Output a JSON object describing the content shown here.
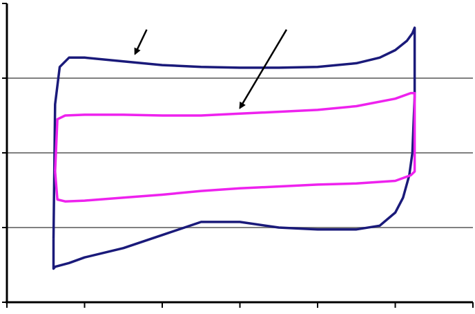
{
  "chart_data": {
    "type": "line",
    "title": "",
    "xlabel": "",
    "ylabel": "",
    "xlim": [
      0,
      6
    ],
    "ylim": [
      -4,
      4
    ],
    "grid": {
      "horizontal": true,
      "vertical": false
    },
    "x_ticks": [
      0,
      1,
      2,
      3,
      4,
      5,
      6
    ],
    "y_gridlines": [
      -2,
      0,
      2
    ],
    "colors": {
      "outer": "#1a1a7a",
      "inner": "#ee22ee",
      "grid": "#808080",
      "axis": "#000000"
    },
    "series": [
      {
        "color": "#1a1a7a",
        "x": [
          0.6,
          0.62,
          0.68,
          0.8,
          1.0,
          1.5,
          2.0,
          2.5,
          3.0,
          3.5,
          4.0,
          4.5,
          4.8,
          5.0,
          5.15,
          5.22,
          5.25,
          5.25,
          5.22,
          5.18,
          5.1,
          5.0,
          4.8,
          4.5,
          4.0,
          3.5,
          3.0,
          2.5,
          2.0,
          1.5,
          1.0,
          0.8,
          0.62,
          0.6,
          0.6
        ],
        "y": [
          -2.3,
          1.3,
          2.3,
          2.55,
          2.55,
          2.45,
          2.35,
          2.3,
          2.28,
          2.28,
          2.3,
          2.4,
          2.55,
          2.75,
          3.0,
          3.2,
          3.35,
          1.5,
          0.0,
          -0.6,
          -1.2,
          -1.6,
          -1.95,
          -2.05,
          -2.05,
          -2.0,
          -1.85,
          -1.85,
          -2.2,
          -2.55,
          -2.8,
          -2.95,
          -3.05,
          -3.1,
          -2.3
        ]
      },
      {
        "color": "#ee22ee",
        "x": [
          0.62,
          0.65,
          0.75,
          1.0,
          1.5,
          2.0,
          2.5,
          3.0,
          3.5,
          4.0,
          4.5,
          5.0,
          5.2,
          5.25,
          5.25,
          5.2,
          5.0,
          4.5,
          4.0,
          3.5,
          3.0,
          2.5,
          2.0,
          1.5,
          1.0,
          0.75,
          0.65,
          0.62
        ],
        "y": [
          -0.5,
          0.9,
          1.0,
          1.02,
          1.02,
          1.0,
          1.0,
          1.05,
          1.1,
          1.15,
          1.25,
          1.45,
          1.6,
          1.6,
          -0.5,
          -0.6,
          -0.75,
          -0.82,
          -0.85,
          -0.9,
          -0.95,
          -1.02,
          -1.12,
          -1.2,
          -1.28,
          -1.3,
          -1.25,
          -0.5
        ]
      }
    ],
    "arrows": [
      {
        "from": [
          1.8,
          3.3
        ],
        "to": [
          1.65,
          2.65
        ]
      },
      {
        "from": [
          3.6,
          3.3
        ],
        "to": [
          3.0,
          1.2
        ]
      }
    ]
  }
}
